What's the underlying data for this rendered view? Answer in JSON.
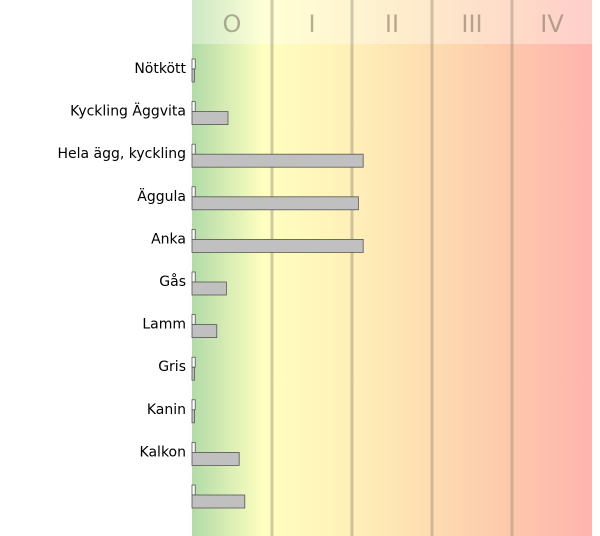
{
  "chart_data": {
    "type": "bar",
    "orientation": "horizontal",
    "classes": [
      "O",
      "I",
      "II",
      "III",
      "IV"
    ],
    "categories": [
      "Nötkött",
      "Kyckling Äggvita",
      "Hela ägg, kyckling",
      "Äggula",
      "Anka",
      "Gås",
      "Lamm",
      "Gris",
      "Kanin",
      "Kalkon",
      null
    ],
    "series": [
      {
        "color": "#ffffff",
        "values": [
          0.04,
          0.04,
          0.04,
          0.04,
          0.04,
          0.04,
          0.04,
          0.04,
          0.04,
          0.04,
          0.04
        ]
      },
      {
        "color": "#c0c0c0",
        "values": [
          0.03,
          0.45,
          2.14,
          2.08,
          2.14,
          0.43,
          0.31,
          0.03,
          0.03,
          0.59,
          0.66
        ]
      }
    ],
    "xlim": [
      0,
      5
    ]
  }
}
